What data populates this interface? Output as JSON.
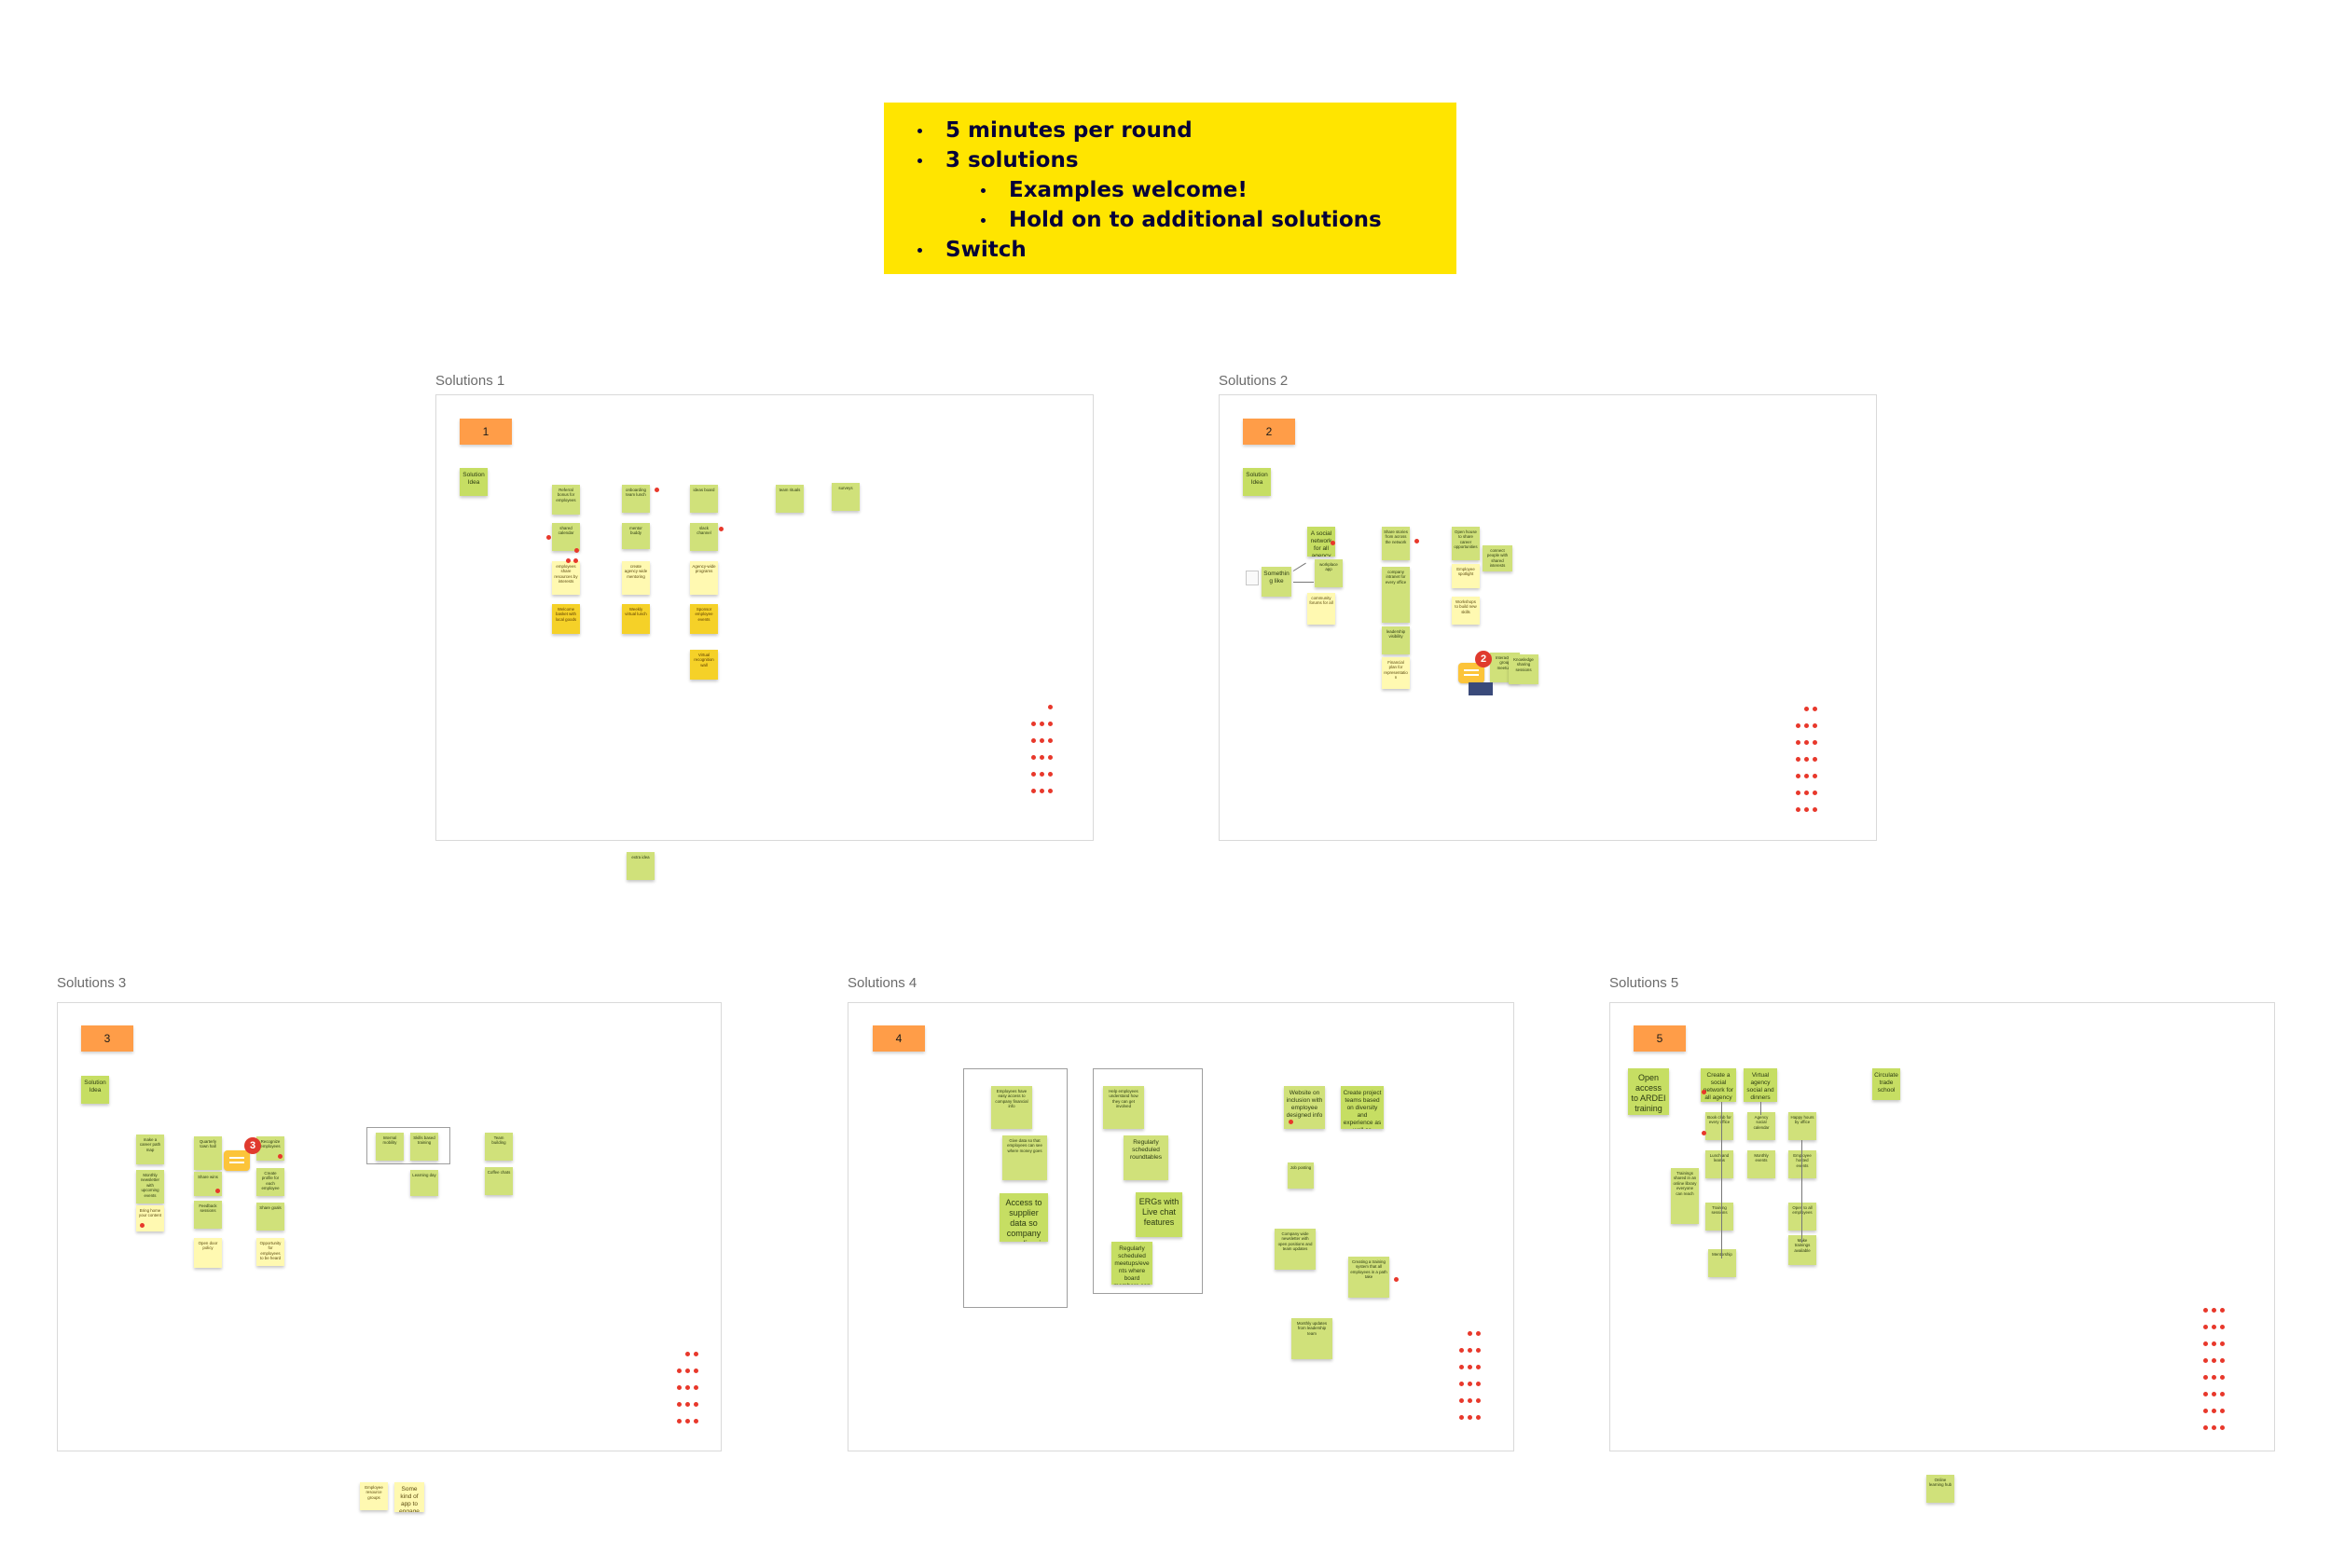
{
  "instructions": {
    "items": [
      {
        "text": "5 minutes per round",
        "level": 1
      },
      {
        "text": "3 solutions",
        "level": 1
      },
      {
        "text": "Examples welcome!",
        "level": 2
      },
      {
        "text": "Hold on to additional solutions",
        "level": 2
      },
      {
        "text": "Switch",
        "level": 1
      }
    ]
  },
  "frames": [
    {
      "title": "Solutions 1",
      "badge": "1",
      "idea": "Solution Idea"
    },
    {
      "title": "Solutions 2",
      "badge": "2",
      "idea": "Solution Idea"
    },
    {
      "title": "Solutions 3",
      "badge": "3",
      "idea": "Solution Idea"
    },
    {
      "title": "Solutions 4",
      "badge": "4",
      "idea": "Solution Idea"
    },
    {
      "title": "Solutions 5",
      "badge": "5",
      "idea": "Open access to ARDEI training materials"
    }
  ],
  "notes": {
    "f2_a": "A social network for all agency employees",
    "f2_b": "Something like",
    "f4_a": "Access to supplier data so company spending is transparent",
    "f4_b": "ERGs with Live chat features",
    "f4_c": "Regularly scheduled meetups/events where board members can be seen",
    "f4_d": "Create project teams based on diversity and experience as well as availability",
    "f5_a": "Create a social network for all agency employees",
    "f5_b": "Virtual agency social and dinners",
    "f5_c": "Circulate trade school",
    "f3_a": "Some kind of app to engage employees"
  },
  "comments": {
    "frame2_count": "2",
    "frame3_count": "3"
  },
  "colors": {
    "accent_yellow": "#ffe500",
    "badge_orange": "#ff9d48",
    "sticky_green": "#d0e17a",
    "dot_red": "#e8382b"
  }
}
